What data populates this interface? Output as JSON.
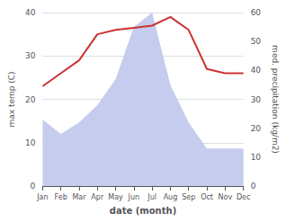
{
  "chart_data": {
    "type": "line",
    "xlabel": "date (month)",
    "ylabel": "max temp (C)",
    "y2label": "med. precipitation (kg/m2)",
    "categories": [
      "Jan",
      "Feb",
      "Mar",
      "Apr",
      "May",
      "Jun",
      "Jul",
      "Aug",
      "Sep",
      "Oct",
      "Nov",
      "Dec"
    ],
    "series": [
      {
        "type": "area",
        "axis": "y2",
        "color": "#c5ccee",
        "values": [
          23,
          18,
          22,
          28,
          37,
          55,
          60,
          35,
          22,
          13,
          13,
          13
        ]
      },
      {
        "type": "line",
        "color": "#cc3333",
        "values": [
          23,
          26,
          29,
          35,
          36,
          36.5,
          37,
          39,
          36,
          27,
          26,
          26
        ]
      }
    ],
    "ylim": [
      0,
      40
    ],
    "yticks": [
      0,
      10,
      20,
      30,
      40
    ],
    "y2lim": [
      0,
      60
    ],
    "y2ticks": [
      0,
      10,
      20,
      30,
      40,
      50,
      60
    ],
    "grid": true
  }
}
